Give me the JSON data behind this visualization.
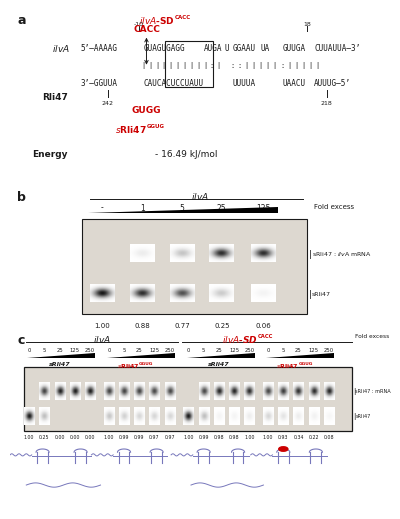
{
  "panel_a": {
    "title_base": "ilvA-SD",
    "title_sup": "CACC",
    "ilva_label": "ilvA",
    "rli47_label": "Rli47",
    "energy_label": "Energy",
    "energy_value": "- 16.49 kJ/mol",
    "pos_neg10": "-10",
    "pos_18": "18",
    "pos_242": "242",
    "pos_218": "218",
    "cacc_label": "CACC",
    "gugg_label": "GUGG",
    "srli47_base": "sRli47",
    "srli47_sup": "GGUG"
  },
  "panel_b": {
    "ilva_label": "ilvA",
    "fold_excess_label": "Fold excess",
    "concentrations": [
      "-",
      "1",
      "5",
      "25",
      "125"
    ],
    "band_values": [
      "1.00",
      "0.88",
      "0.77",
      "0.25",
      "0.06"
    ],
    "label_complex": "sRli47 : ilvA mRNA",
    "label_free": "sRli47"
  },
  "panel_c": {
    "ilva_label": "ilvA",
    "ilvasd_base": "ilvA-SD",
    "ilvasd_sup": "CACC",
    "fold_excess_label": "Fold excess",
    "concentrations": [
      "0",
      "5",
      "25",
      "125",
      "250"
    ],
    "group1_label": "sRli47",
    "group2_base": "sRli47",
    "group2_sup": "GGUG",
    "group3_label": "sRli47",
    "group4_base": "sRli47",
    "group4_sup": "GGUG",
    "band_values": [
      "1.00",
      "0.25",
      "0.00",
      "0.00",
      "0.00",
      "1.00",
      "0.99",
      "0.99",
      "0.97",
      "0.97",
      "1.00",
      "0.99",
      "0.98",
      "0.98",
      "1.00",
      "1.00",
      "0.93",
      "0.34",
      "0.22",
      "0.08"
    ],
    "label_complex": "sRli47 : mRNA",
    "label_free": "sRli47"
  },
  "background_color": "#ffffff",
  "text_color": "#1a1a1a",
  "red_color": "#cc0000",
  "gel_bg_light": "#ddd8d0",
  "hairpin_color": "#7777bb"
}
